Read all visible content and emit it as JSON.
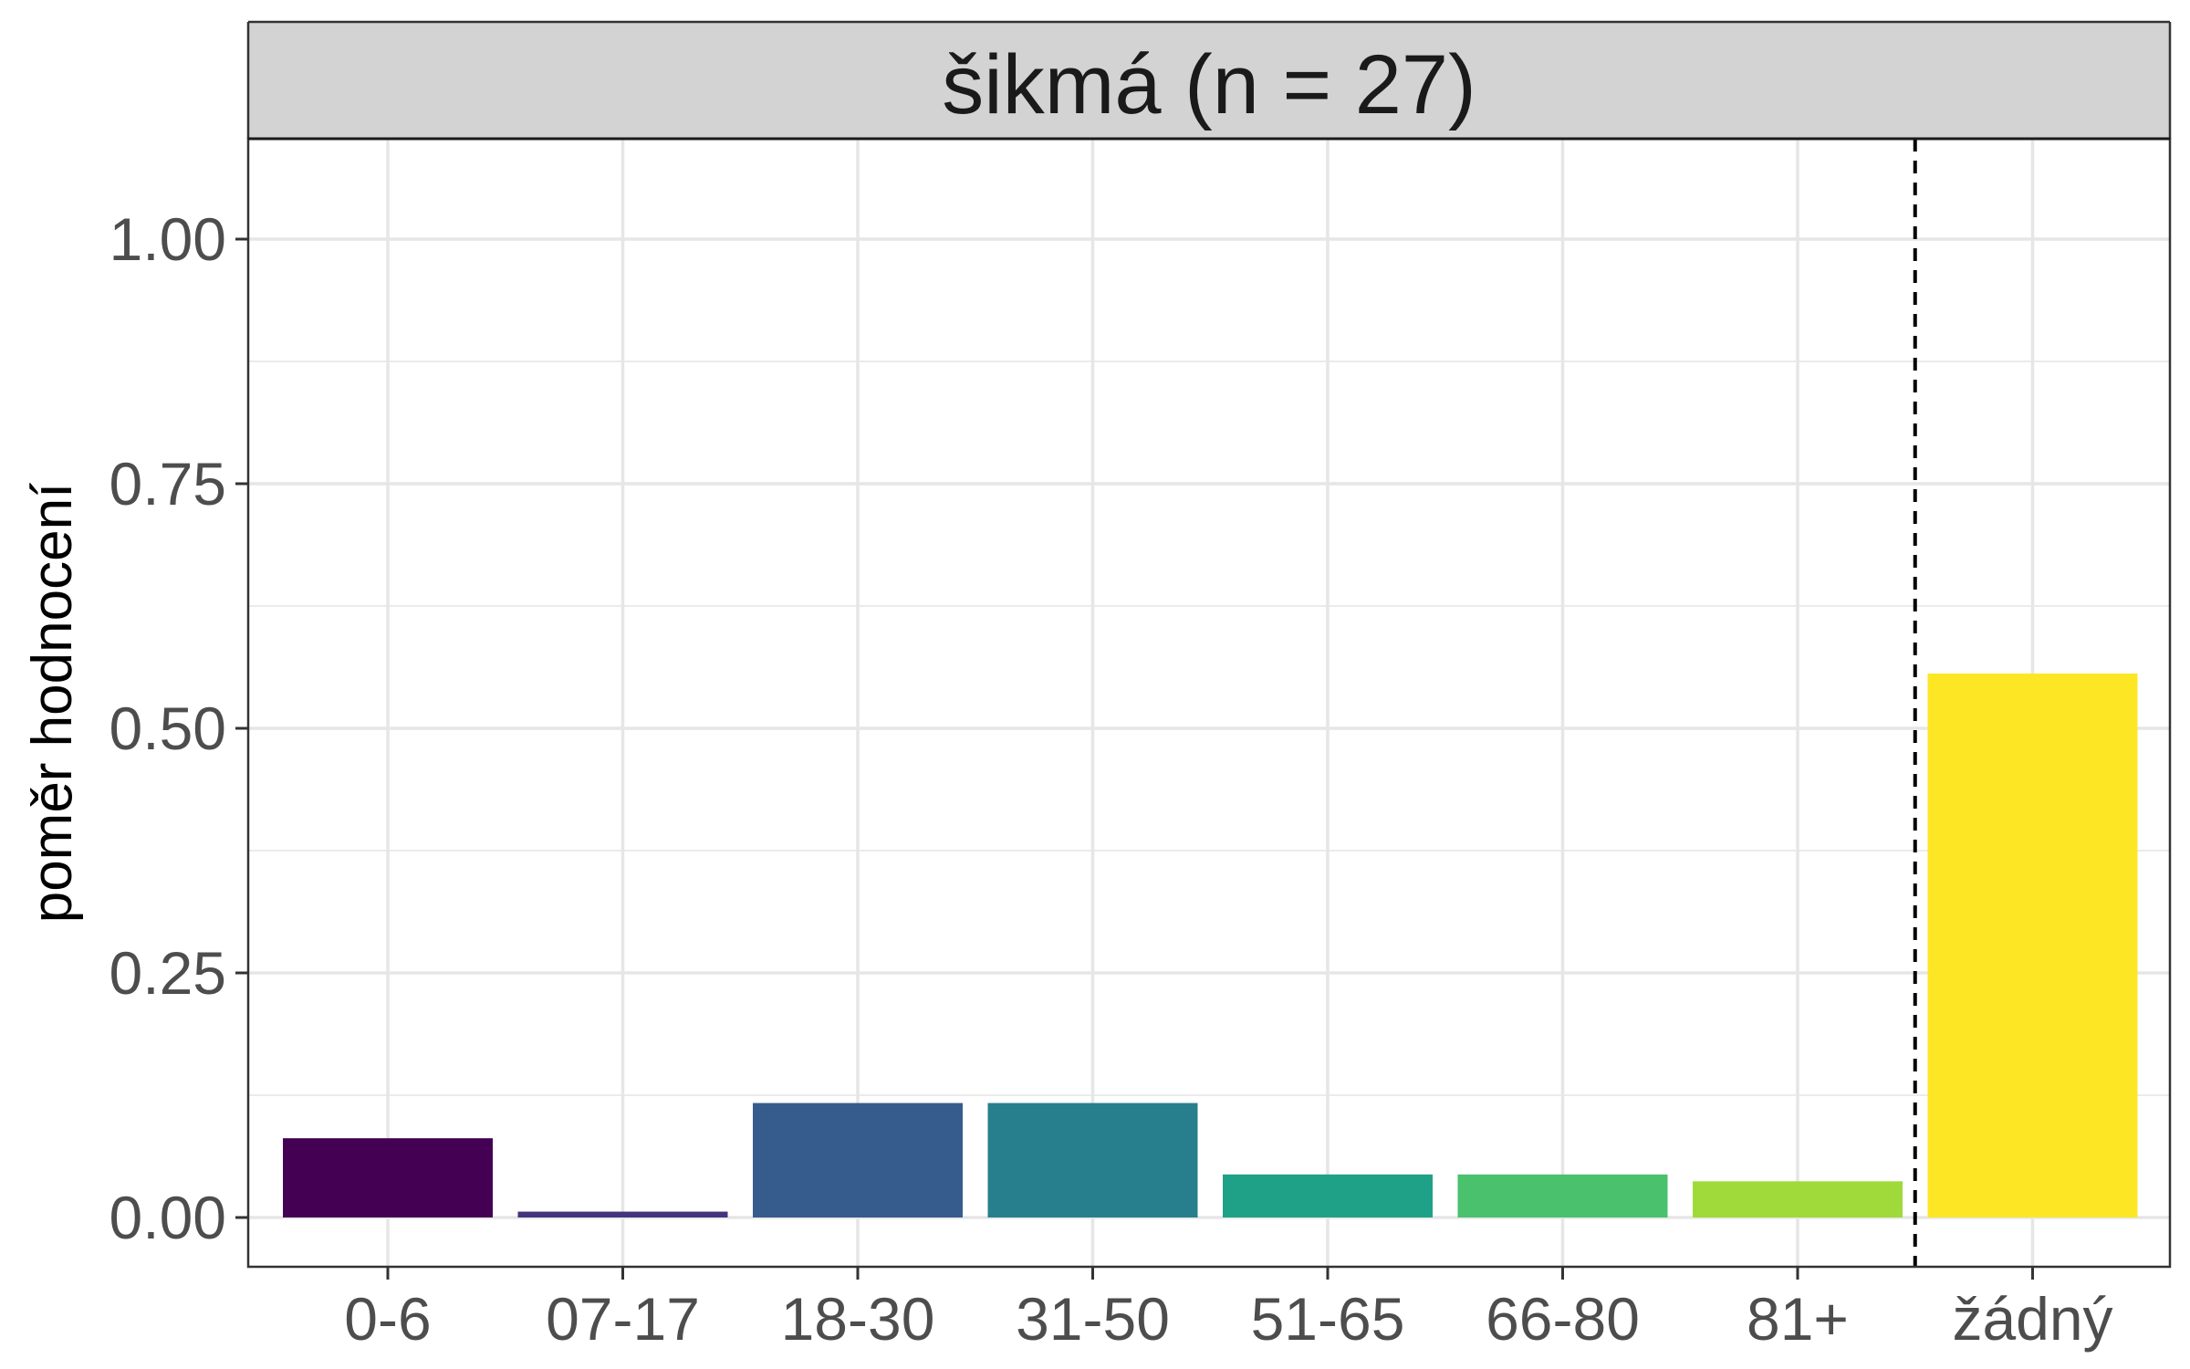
{
  "chart_data": {
    "type": "bar",
    "title": "šikmá (n = 27)",
    "xlabel": "",
    "ylabel": "poměr hodnocení",
    "categories": [
      "0-6",
      "07-17",
      "18-30",
      "31-50",
      "51-65",
      "66-80",
      "81+",
      "žádný"
    ],
    "values": [
      0.081,
      0.006,
      0.117,
      0.117,
      0.044,
      0.044,
      0.037,
      0.556
    ],
    "colors": [
      "#440154",
      "#46337E",
      "#365C8D",
      "#277F8E",
      "#1FA187",
      "#4AC16D",
      "#9FDA3A",
      "#FDE725"
    ],
    "ylim": [
      -0.05,
      1.1
    ],
    "yticks": [
      "0.00",
      "0.25",
      "0.50",
      "0.75",
      "1.00"
    ],
    "ytick_values": [
      0,
      0.25,
      0.5,
      0.75,
      1.0
    ],
    "separator_after_category": "81+",
    "grid": true,
    "legend": "none"
  }
}
